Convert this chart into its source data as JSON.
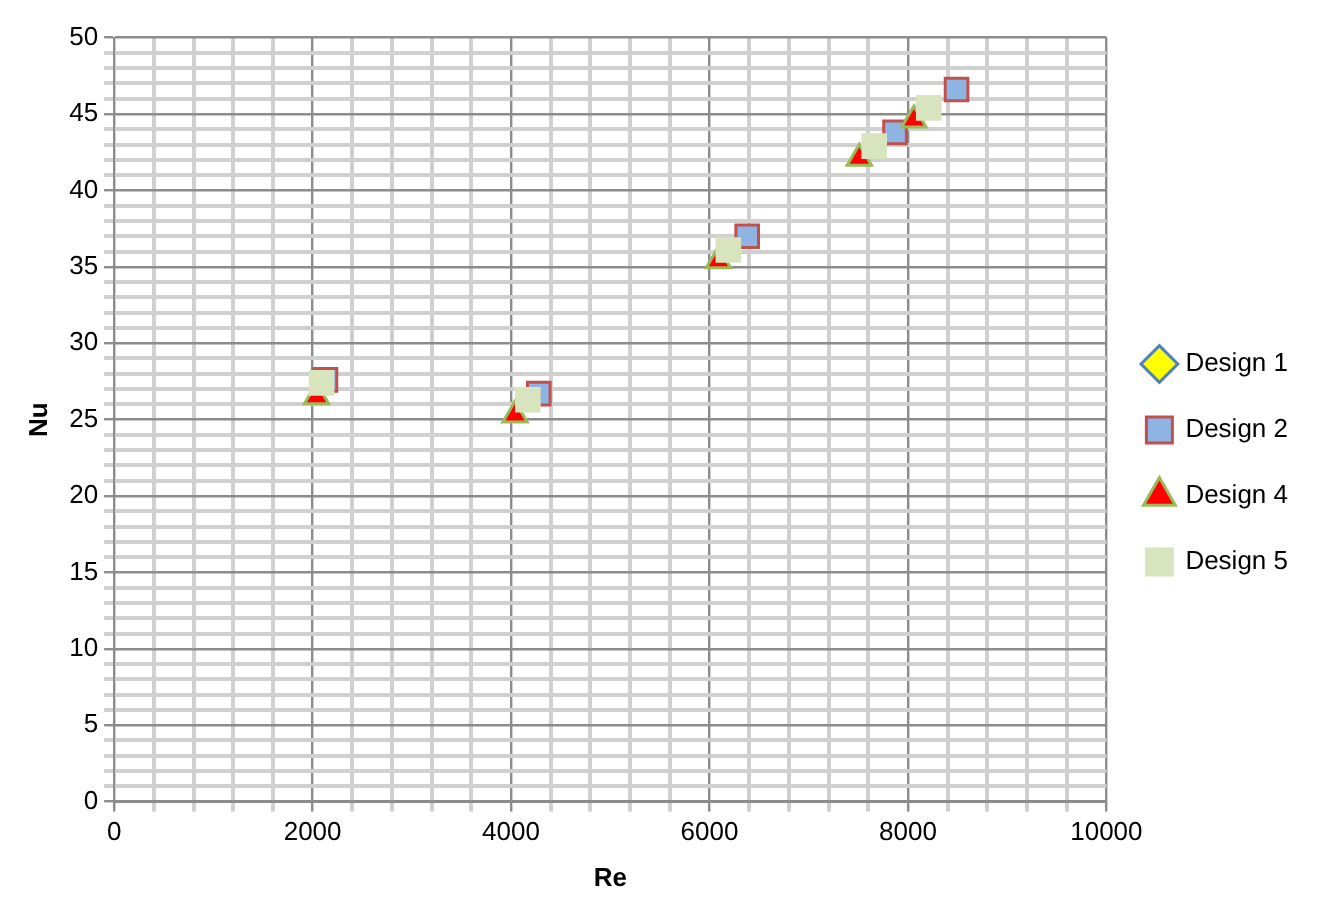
{
  "chart_data": {
    "type": "scatter",
    "xlabel": "Re",
    "ylabel": "Nu",
    "legend": "right",
    "grid": true,
    "xlim": [
      0,
      10000
    ],
    "ylim": [
      0,
      50
    ],
    "xticks": [
      0,
      {
        "value": 400,
        "label": null
      },
      {
        "value": 800,
        "label": null
      },
      {
        "value": 1200,
        "label": null
      },
      {
        "value": 1600,
        "label": null
      },
      2000,
      {
        "value": 2400,
        "label": null
      },
      {
        "value": 2800,
        "label": null
      },
      {
        "value": 3200,
        "label": null
      },
      {
        "value": 3600,
        "label": null
      },
      4000,
      {
        "value": 4400,
        "label": null
      },
      {
        "value": 4800,
        "label": null
      },
      {
        "value": 5200,
        "label": null
      },
      {
        "value": 5600,
        "label": null
      },
      6000,
      {
        "value": 6400,
        "label": null
      },
      {
        "value": 6800,
        "label": null
      },
      {
        "value": 7200,
        "label": null
      },
      {
        "value": 7600,
        "label": null
      },
      8000,
      {
        "value": 8400,
        "label": null
      },
      {
        "value": 8800,
        "label": null
      },
      {
        "value": 9200,
        "label": null
      },
      {
        "value": 9600,
        "label": null
      },
      10000
    ],
    "yticks": [
      0,
      {
        "value": 1,
        "label": null
      },
      {
        "value": 2,
        "label": null
      },
      {
        "value": 3,
        "label": null
      },
      {
        "value": 4,
        "label": null
      },
      5,
      {
        "value": 6,
        "label": null
      },
      {
        "value": 7,
        "label": null
      },
      {
        "value": 8,
        "label": null
      },
      {
        "value": 9,
        "label": null
      },
      10,
      {
        "value": 11,
        "label": null
      },
      {
        "value": 12,
        "label": null
      },
      {
        "value": 13,
        "label": null
      },
      {
        "value": 14,
        "label": null
      },
      15,
      {
        "value": 16,
        "label": null
      },
      {
        "value": 17,
        "label": null
      },
      {
        "value": 18,
        "label": null
      },
      {
        "value": 19,
        "label": null
      },
      20,
      {
        "value": 21,
        "label": null
      },
      {
        "value": 22,
        "label": null
      },
      {
        "value": 23,
        "label": null
      },
      {
        "value": 24,
        "label": null
      },
      25,
      {
        "value": 26,
        "label": null
      },
      {
        "value": 27,
        "label": null
      },
      {
        "value": 28,
        "label": null
      },
      {
        "value": 29,
        "label": null
      },
      30,
      {
        "value": 31,
        "label": null
      },
      {
        "value": 32,
        "label": null
      },
      {
        "value": 33,
        "label": null
      },
      {
        "value": 34,
        "label": null
      },
      35,
      {
        "value": 36,
        "label": null
      },
      {
        "value": 37,
        "label": null
      },
      {
        "value": 38,
        "label": null
      },
      {
        "value": 39,
        "label": null
      },
      40,
      {
        "value": 41,
        "label": null
      },
      {
        "value": 42,
        "label": null
      },
      {
        "value": 43,
        "label": null
      },
      {
        "value": 44,
        "label": null
      },
      45,
      {
        "value": 46,
        "label": null
      },
      {
        "value": 47,
        "label": null
      },
      {
        "value": 48,
        "label": null
      },
      {
        "value": 49,
        "label": null
      },
      50
    ],
    "series": [
      {
        "name": "Design 1",
        "color": "#ffff00",
        "marker": "diamond"
      },
      {
        "name": "Design 2",
        "color": "#8eb4e3",
        "marker": "square",
        "x": [
          2130,
          4280,
          6380,
          7870,
          8490
        ],
        "values": [
          27.6,
          26.7,
          37.0,
          43.8,
          46.6
        ]
      },
      {
        "name": "Design 4",
        "color": "#ff0000",
        "marker": "triangle",
        "x": [
          2040,
          4040,
          6090,
          7510,
          8060
        ],
        "values": [
          26.5,
          25.3,
          35.4,
          42.1,
          44.6
        ]
      },
      {
        "name": "Design 5",
        "color": "#d7e4bd",
        "marker": "square",
        "x": [
          2090,
          4170,
          6190,
          7660,
          8210
        ],
        "values": [
          27.4,
          26.3,
          36.1,
          42.9,
          45.4
        ]
      }
    ]
  }
}
